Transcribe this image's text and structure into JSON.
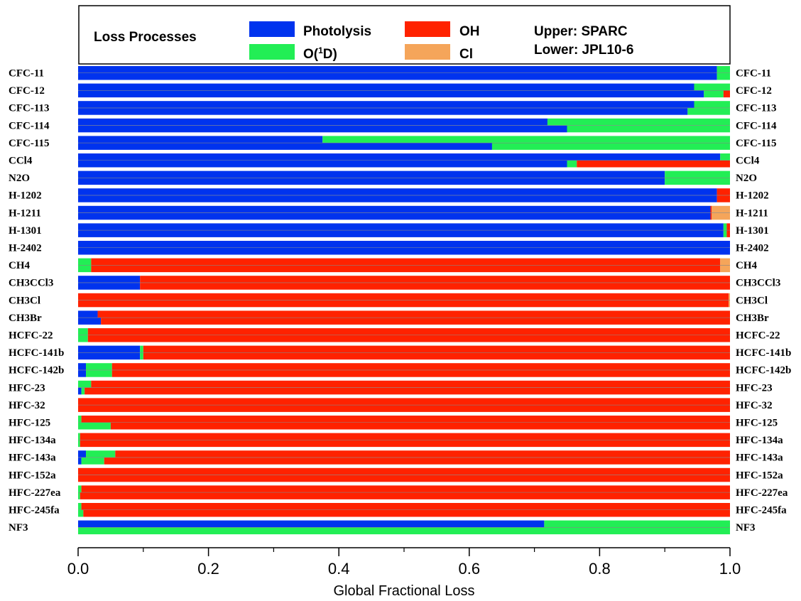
{
  "chart_data": {
    "type": "bar",
    "orientation": "horizontal",
    "stacked": true,
    "xlabel": "Global Fractional Loss",
    "xlim": [
      0,
      1
    ],
    "xticks": [
      "0.0",
      "0.2",
      "0.4",
      "0.6",
      "0.8",
      "1.0"
    ],
    "legend": {
      "title": "Loss Processes",
      "entries": [
        {
          "name": "Photolysis",
          "color": "#0033ee"
        },
        {
          "name": "OH",
          "color": "#ff2200"
        },
        {
          "name": "O(1D)",
          "color": "#22ee55"
        },
        {
          "name": "Cl",
          "color": "#f5a55a"
        }
      ],
      "note_upper": "Upper: SPARC",
      "note_lower": "Lower: JPL10-6"
    },
    "colors": {
      "Photolysis": "#0033ee",
      "O1D": "#22ee55",
      "OH": "#ff2200",
      "Cl": "#f5a55a"
    },
    "series_order": [
      "Photolysis",
      "O1D",
      "OH",
      "Cl"
    ],
    "categories": [
      "CFC-11",
      "CFC-12",
      "CFC-113",
      "CFC-114",
      "CFC-115",
      "CCl4",
      "N2O",
      "H-1202",
      "H-1211",
      "H-1301",
      "H-2402",
      "CH4",
      "CH3CCl3",
      "CH3Cl",
      "CH3Br",
      "HCFC-22",
      "HCFC-141b",
      "HCFC-142b",
      "HFC-23",
      "HFC-32",
      "HFC-125",
      "HFC-134a",
      "HFC-143a",
      "HFC-152a",
      "HFC-227ea",
      "HFC-245fa",
      "NF3"
    ],
    "upper_sparc": [
      [
        0.98,
        0.02,
        0,
        0
      ],
      [
        0.945,
        0.055,
        0,
        0
      ],
      [
        0.945,
        0.055,
        0,
        0
      ],
      [
        0.72,
        0.28,
        0,
        0
      ],
      [
        0.375,
        0.625,
        0,
        0
      ],
      [
        0.985,
        0.015,
        0,
        0
      ],
      [
        0.9,
        0.1,
        0,
        0
      ],
      [
        0.98,
        0,
        0.02,
        0
      ],
      [
        0.97,
        0,
        0.002,
        0.028
      ],
      [
        0.99,
        0.005,
        0.005,
        0
      ],
      [
        1.0,
        0,
        0,
        0
      ],
      [
        0,
        0.02,
        0.965,
        0.015
      ],
      [
        0.095,
        0,
        0.905,
        0
      ],
      [
        0,
        0,
        0.998,
        0.002
      ],
      [
        0.03,
        0,
        0.97,
        0
      ],
      [
        0,
        0.015,
        0.985,
        0
      ],
      [
        0.095,
        0.005,
        0.9,
        0
      ],
      [
        0.012,
        0.04,
        0.948,
        0
      ],
      [
        0,
        0.02,
        0.98,
        0
      ],
      [
        0,
        0,
        1.0,
        0
      ],
      [
        0,
        0.005,
        0.995,
        0
      ],
      [
        0,
        0.003,
        0.997,
        0
      ],
      [
        0.012,
        0.045,
        0.943,
        0
      ],
      [
        0,
        0,
        1.0,
        0
      ],
      [
        0,
        0.005,
        0.995,
        0
      ],
      [
        0,
        0.005,
        0.995,
        0
      ],
      [
        0.715,
        0.285,
        0,
        0
      ]
    ],
    "lower_jpl10_6": [
      [
        0.98,
        0.02,
        0,
        0
      ],
      [
        0.96,
        0.03,
        0.01,
        0
      ],
      [
        0.935,
        0.065,
        0,
        0
      ],
      [
        0.75,
        0.25,
        0,
        0
      ],
      [
        0.635,
        0.365,
        0,
        0
      ],
      [
        0.75,
        0.015,
        0.235,
        0
      ],
      [
        0.9,
        0.1,
        0,
        0
      ],
      [
        0.98,
        0,
        0.02,
        0
      ],
      [
        0.97,
        0,
        0.002,
        0.028
      ],
      [
        0.99,
        0.005,
        0.005,
        0
      ],
      [
        1.0,
        0,
        0,
        0
      ],
      [
        0,
        0.02,
        0.965,
        0.015
      ],
      [
        0.095,
        0,
        0.905,
        0
      ],
      [
        0,
        0,
        0.998,
        0.002
      ],
      [
        0.035,
        0,
        0.965,
        0
      ],
      [
        0,
        0.015,
        0.985,
        0
      ],
      [
        0.095,
        0.005,
        0.9,
        0
      ],
      [
        0.012,
        0.04,
        0.948,
        0
      ],
      [
        0.005,
        0.005,
        0.99,
        0
      ],
      [
        0,
        0,
        1.0,
        0
      ],
      [
        0,
        0.05,
        0.95,
        0
      ],
      [
        0,
        0.003,
        0.997,
        0
      ],
      [
        0.005,
        0.035,
        0.96,
        0
      ],
      [
        0,
        0,
        1.0,
        0
      ],
      [
        0,
        0.003,
        0.997,
        0
      ],
      [
        0,
        0.008,
        0.992,
        0
      ],
      [
        0,
        1.0,
        0,
        0
      ]
    ]
  }
}
